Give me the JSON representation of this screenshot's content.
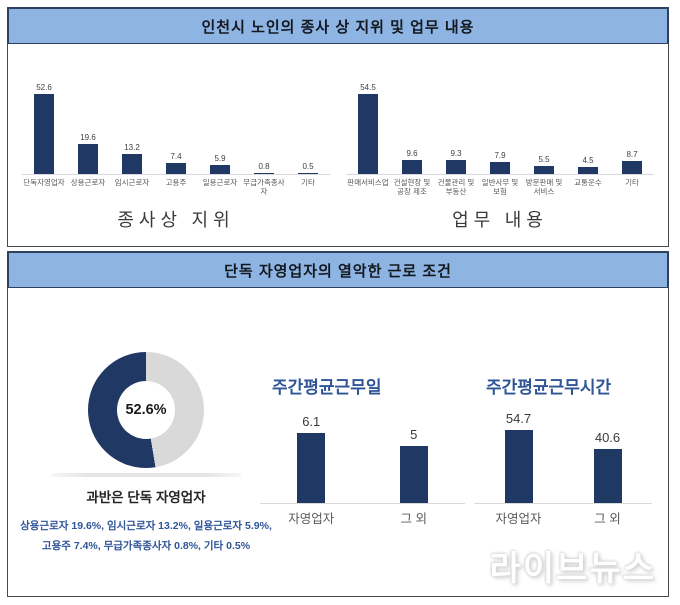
{
  "sections": [
    {
      "header": "인천시 노인의 종사 상 지위 및 업무 내용"
    },
    {
      "header": "단독 자영업자의 열악한 근로 조건",
      "donut_caption": "과반은 단독 자영업자",
      "note_lines": [
        "상용근로자 19.6%, 임시근로자 13.2%, 일용근로자 5.9%,",
        "고용주 7.4%, 무급가족종사자 0.8%, 기타 0.5%"
      ]
    }
  ],
  "chart_data": [
    {
      "type": "bar",
      "title": "종사상 지위",
      "categories": [
        "단독자영업자",
        "상용근로자",
        "임시근로자",
        "고용주",
        "일용근로자",
        "무급가족종사자",
        "기타"
      ],
      "values": [
        52.6,
        19.6,
        13.2,
        7.4,
        5.9,
        0.8,
        0.5
      ],
      "ylim": [
        0,
        55
      ],
      "grid": false,
      "bar_color": "#1F3864"
    },
    {
      "type": "bar",
      "title": "업무 내용",
      "categories": [
        "판매서비스업",
        "건설현장 및 공장 제조",
        "건물관리 및 부동산",
        "일반사무 및 보험",
        "방문판매 및 서비스",
        "교통운수",
        "기타"
      ],
      "values": [
        54.5,
        9.6,
        9.3,
        7.9,
        5.5,
        4.5,
        8.7
      ],
      "ylim": [
        0,
        57
      ],
      "grid": false,
      "bar_color": "#1F3864"
    },
    {
      "type": "pie",
      "subtype": "donut",
      "center_label": "52.6%",
      "slices": [
        {
          "label": "단독 자영업자",
          "value": 52.6,
          "color": "#1F3864"
        },
        {
          "label": "그 외",
          "value": 47.4,
          "color": "#D9D9D9"
        }
      ]
    },
    {
      "type": "bar",
      "title": "주간평균근무일",
      "categories": [
        "자영업자",
        "그 외"
      ],
      "values": [
        6.1,
        5
      ],
      "ylim": [
        0,
        6.5
      ],
      "grid": false,
      "bar_color": "#1F3864"
    },
    {
      "type": "bar",
      "title": "주간평균근무시간",
      "categories": [
        "자영업자",
        "그 외"
      ],
      "values": [
        54.7,
        40.6
      ],
      "ylim": [
        0,
        58
      ],
      "grid": false,
      "bar_color": "#1F3864"
    }
  ],
  "watermark": "라이브뉴스",
  "colors": {
    "header_bg": "#8DB4E2",
    "header_border": "#31405C",
    "navy": "#1F3864",
    "donut_rest": "#D9D9D9",
    "accent_blue": "#2F5597"
  }
}
